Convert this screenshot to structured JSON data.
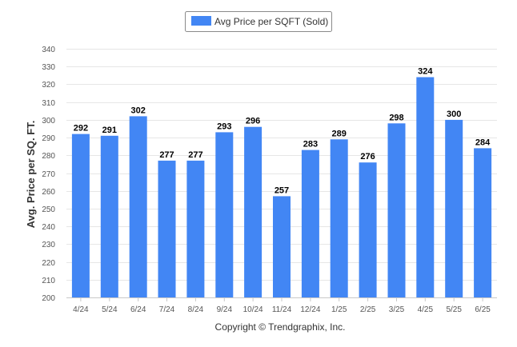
{
  "chart_data": {
    "type": "bar",
    "categories": [
      "4/24",
      "5/24",
      "6/24",
      "7/24",
      "8/24",
      "9/24",
      "10/24",
      "11/24",
      "12/24",
      "1/25",
      "2/25",
      "3/25",
      "4/25",
      "5/25",
      "6/25"
    ],
    "series": [
      {
        "name": "Avg Price per SQFT (Sold)",
        "values": [
          292,
          291,
          302,
          277,
          277,
          293,
          296,
          257,
          283,
          289,
          276,
          298,
          324,
          300,
          284
        ],
        "color": "#4286f4"
      }
    ],
    "title": "",
    "xlabel": "",
    "ylabel": "Avg. Price per SQ. FT.",
    "ylim": [
      200,
      340
    ],
    "yticks": [
      200,
      210,
      220,
      230,
      240,
      250,
      260,
      270,
      280,
      290,
      300,
      310,
      320,
      330,
      340
    ],
    "grid": true,
    "legend_position": "top-center",
    "data_labels": true
  },
  "footer": {
    "credit": "Copyright © Trendgraphix, Inc."
  }
}
